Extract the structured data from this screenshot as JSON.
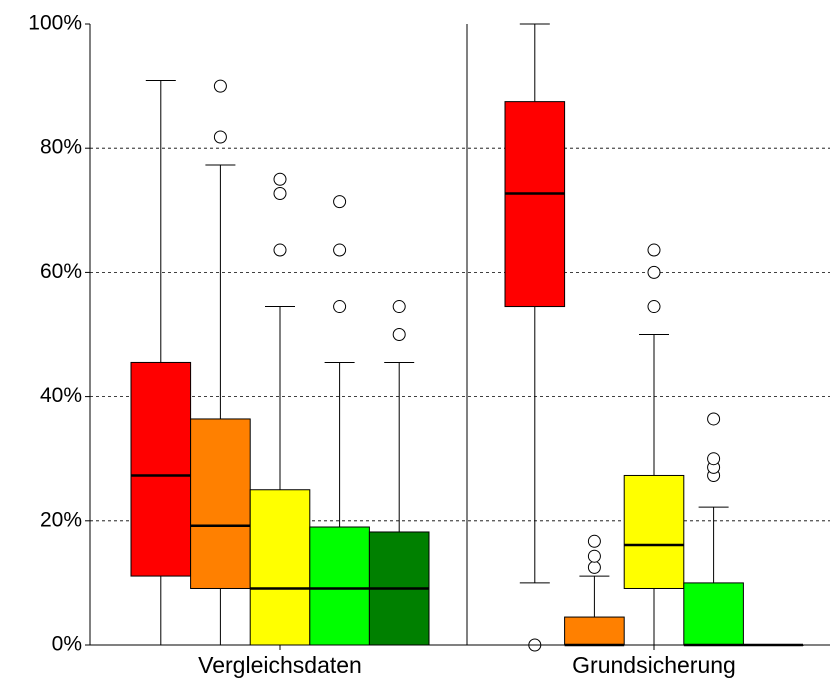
{
  "chart_data": {
    "type": "box",
    "categories": [
      "Vergleichsdaten",
      "Grundsicherung"
    ],
    "ylim": [
      0,
      100
    ],
    "yticks": [
      {
        "value": 0,
        "label": "0%"
      },
      {
        "value": 20,
        "label": "20%"
      },
      {
        "value": 40,
        "label": "40%"
      },
      {
        "value": 60,
        "label": "60%"
      },
      {
        "value": 80,
        "label": "80%"
      },
      {
        "value": 100,
        "label": "100%"
      }
    ],
    "grid": true,
    "series": [
      {
        "color": "#ff0000",
        "boxes": [
          {
            "whisker_low": 0,
            "q1": 11.1,
            "median": 27.3,
            "q3": 45.5,
            "whisker_high": 90.9,
            "outliers": []
          },
          {
            "whisker_low": 10,
            "q1": 54.5,
            "median": 72.7,
            "q3": 87.5,
            "whisker_high": 100,
            "outliers": [
              0
            ]
          }
        ]
      },
      {
        "color": "#ff8000",
        "boxes": [
          {
            "whisker_low": 0,
            "q1": 9.1,
            "median": 19.2,
            "q3": 36.4,
            "whisker_high": 77.3,
            "outliers": [
              81.8,
              90
            ]
          },
          {
            "whisker_low": 0,
            "q1": 0,
            "median": 0,
            "q3": 4.5,
            "whisker_high": 11.1,
            "outliers": [
              12.5,
              14.3,
              16.7
            ]
          }
        ]
      },
      {
        "color": "#ffff00",
        "boxes": [
          {
            "whisker_low": 0,
            "q1": 0,
            "median": 9.1,
            "q3": 25,
            "whisker_high": 54.5,
            "outliers": [
              63.6,
              72.7,
              75
            ]
          },
          {
            "whisker_low": 0,
            "q1": 9.1,
            "median": 16.1,
            "q3": 27.3,
            "whisker_high": 50,
            "outliers": [
              54.5,
              60,
              63.6
            ]
          }
        ]
      },
      {
        "color": "#00ff00",
        "boxes": [
          {
            "whisker_low": 0,
            "q1": 0,
            "median": 9.1,
            "q3": 19,
            "whisker_high": 45.5,
            "outliers": [
              54.5,
              63.6,
              71.4
            ]
          },
          {
            "whisker_low": 0,
            "q1": 0,
            "median": 0,
            "q3": 10,
            "whisker_high": 22.2,
            "outliers": [
              27.3,
              28.6,
              30,
              36.4
            ]
          }
        ]
      },
      {
        "color": "#008000",
        "boxes": [
          {
            "whisker_low": 0,
            "q1": 0,
            "median": 9.1,
            "q3": 18.2,
            "whisker_high": 45.5,
            "outliers": [
              50,
              54.5
            ]
          },
          {
            "whisker_low": 0,
            "q1": 0,
            "median": 0,
            "q3": 0,
            "whisker_high": 0,
            "outliers": []
          }
        ]
      }
    ]
  }
}
